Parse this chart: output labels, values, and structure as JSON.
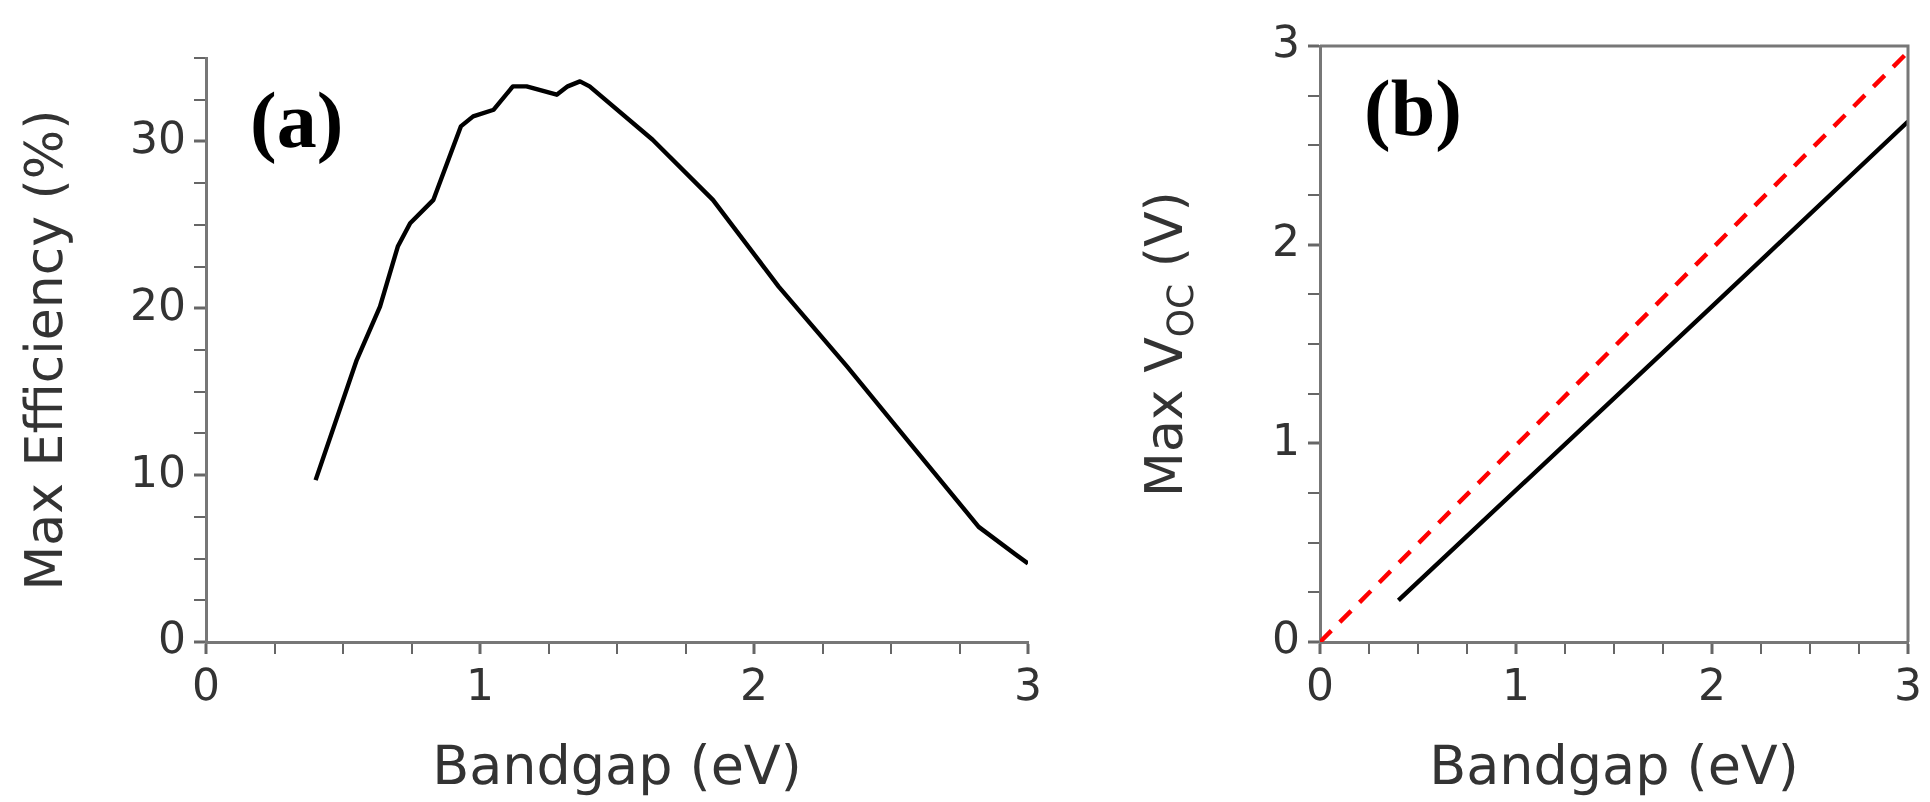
{
  "chart_data": [
    {
      "type": "line",
      "annotations": [
        "(a)"
      ],
      "xlabel": "Bandgap (eV)",
      "ylabel": "Max Efficiency (%)",
      "xlim": [
        0,
        3
      ],
      "ylim": [
        0,
        35
      ],
      "xticks": [
        0,
        {
          "value": 0.25,
          "label": null
        },
        {
          "value": 0.5,
          "label": null
        },
        {
          "value": 0.75,
          "label": null
        },
        1,
        {
          "value": 1.25,
          "label": null
        },
        {
          "value": 1.5,
          "label": null
        },
        {
          "value": 1.75,
          "label": null
        },
        2,
        {
          "value": 2.25,
          "label": null
        },
        {
          "value": 2.5,
          "label": null
        },
        {
          "value": 2.75,
          "label": null
        },
        3
      ],
      "yticks": [
        0,
        {
          "value": 2.5,
          "label": null
        },
        {
          "value": 5,
          "label": null
        },
        {
          "value": 7.5,
          "label": null
        },
        10,
        {
          "value": 12.5,
          "label": null
        },
        {
          "value": 15,
          "label": null
        },
        {
          "value": 17.5,
          "label": null
        },
        20,
        {
          "value": 22.5,
          "label": null
        },
        {
          "value": 25,
          "label": null
        },
        {
          "value": 27.5,
          "label": null
        },
        30,
        {
          "value": 32.5,
          "label": null
        },
        {
          "value": 35,
          "label": null
        }
      ],
      "grid": false,
      "legend": false,
      "series": [
        {
          "color": "#000000",
          "x": [
            0.4,
            0.55,
            0.635,
            0.7,
            0.745,
            0.83,
            0.93,
            0.975,
            1.05,
            1.12,
            1.17,
            1.28,
            1.32,
            1.365,
            1.4,
            1.63,
            1.85,
            2.09,
            2.34,
            2.58,
            2.82,
            3.0
          ],
          "values": [
            9.7,
            16.9,
            20.1,
            23.7,
            25.1,
            26.5,
            30.9,
            31.5,
            31.9,
            33.3,
            33.3,
            32.8,
            33.3,
            33.6,
            33.3,
            30.1,
            26.5,
            21.3,
            16.5,
            11.7,
            6.9,
            4.7
          ]
        }
      ]
    },
    {
      "type": "line",
      "annotations": [
        "(b)"
      ],
      "xlabel": "Bandgap (eV)",
      "ylabel": "Max V$_{OC}$ (V)",
      "xlim": [
        0,
        3
      ],
      "ylim": [
        0,
        3
      ],
      "xticks": [
        0,
        {
          "value": 0.25,
          "label": null
        },
        {
          "value": 0.5,
          "label": null
        },
        {
          "value": 0.75,
          "label": null
        },
        1,
        {
          "value": 1.25,
          "label": null
        },
        {
          "value": 1.5,
          "label": null
        },
        {
          "value": 1.75,
          "label": null
        },
        2,
        {
          "value": 2.25,
          "label": null
        },
        {
          "value": 2.5,
          "label": null
        },
        {
          "value": 2.75,
          "label": null
        },
        3
      ],
      "yticks": [
        0,
        {
          "value": 0.25,
          "label": null
        },
        {
          "value": 0.5,
          "label": null
        },
        {
          "value": 0.75,
          "label": null
        },
        1,
        {
          "value": 1.25,
          "label": null
        },
        {
          "value": 1.5,
          "label": null
        },
        {
          "value": 1.75,
          "label": null
        },
        2,
        {
          "value": 2.25,
          "label": null
        },
        {
          "value": 2.5,
          "label": null
        },
        {
          "value": 2.75,
          "label": null
        },
        3
      ],
      "grid": false,
      "legend": false,
      "series": [
        {
          "color": "#ff0000",
          "line_style": "dashed",
          "x": [
            0,
            3
          ],
          "values": [
            0,
            2.97
          ]
        },
        {
          "color": "#000000",
          "line_style": "solid",
          "x": [
            0.4,
            1.98,
            3
          ],
          "values": [
            0.21,
            1.67,
            2.62
          ]
        }
      ]
    }
  ]
}
